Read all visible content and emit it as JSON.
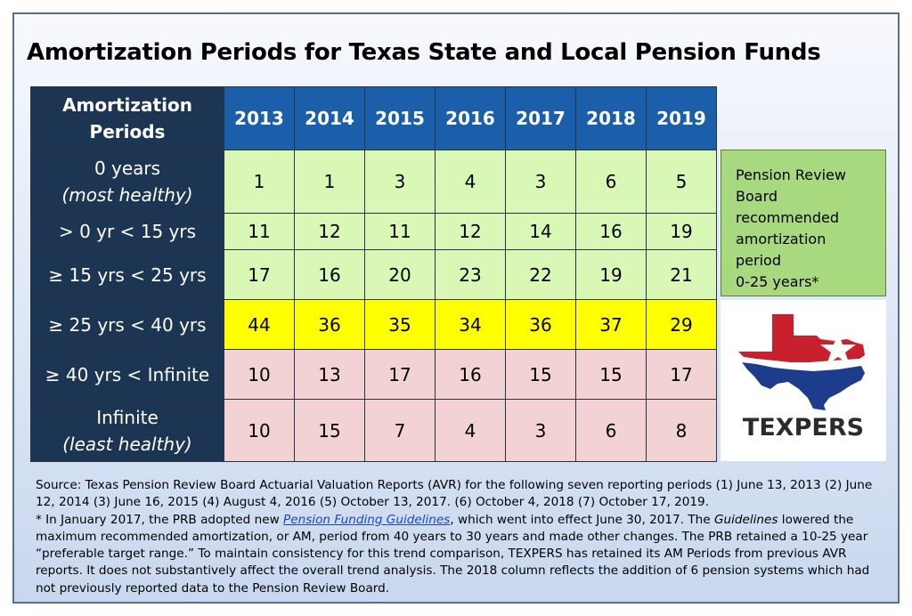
{
  "title": "Amortization Periods for Texas State and Local Pension Funds",
  "chart_data": {
    "type": "table",
    "title": "Amortization Periods for Texas State and Local Pension Funds",
    "header_label_line1": "Amortization",
    "header_label_line2": "Periods",
    "years": [
      "2013",
      "2014",
      "2015",
      "2016",
      "2017",
      "2018",
      "2019"
    ],
    "rows": [
      {
        "label": "0 years",
        "sublabel": "(most healthy)",
        "values": [
          "1",
          "1",
          "3",
          "4",
          "3",
          "6",
          "5"
        ],
        "color": "#d9f8b6"
      },
      {
        "label": "> 0 yr < 15 yrs",
        "sublabel": "",
        "values": [
          "11",
          "12",
          "11",
          "12",
          "14",
          "16",
          "19"
        ],
        "color": "#d9f8b6"
      },
      {
        "label": "≥ 15 yrs < 25 yrs",
        "sublabel": "",
        "values": [
          "17",
          "16",
          "20",
          "23",
          "22",
          "19",
          "21"
        ],
        "color": "#d9f8b6"
      },
      {
        "label": "≥ 25 yrs < 40 yrs",
        "sublabel": "",
        "values": [
          "44",
          "36",
          "35",
          "34",
          "36",
          "37",
          "29"
        ],
        "color": "#ffff00"
      },
      {
        "label": "≥ 40 yrs < Infinite",
        "sublabel": "",
        "values": [
          "10",
          "13",
          "17",
          "16",
          "15",
          "15",
          "17"
        ],
        "color": "#f2d2d2"
      },
      {
        "label": "Infinite",
        "sublabel": "(least healthy)",
        "values": [
          "10",
          "15",
          "7",
          "4",
          "3",
          "6",
          "8"
        ],
        "color": "#f2d2d2"
      }
    ]
  },
  "note": {
    "lines": [
      "Pension Review",
      "Board",
      "recommended",
      "amortization",
      "period",
      "0-25 years*"
    ]
  },
  "logo": {
    "text": "TEXPERS",
    "colors": {
      "red": "#c8202d",
      "blue": "#1d3c8c",
      "star": "#ffffff"
    }
  },
  "source": {
    "line1": "Source: Texas Pension Review Board Actuarial Valuation Reports (AVR) for the following seven reporting periods (1) June 13, 2013 (2) June 12, 2014 (3) June 16, 2015 (4) August 4, 2016 (5) October 13, 2017. (6) October 4, 2018 (7) October 17, 2019.",
    "note_pre": "* In January 2017, the PRB adopted new ",
    "note_link": "Pension Funding Guidelines",
    "note_mid": ", which went into effect June 30, 2017. The ",
    "note_em": "Guidelines",
    "note_post": " lowered the maximum recommended amortization, or AM, period from 40 years to 30 years and made other changes. The PRB retained a 10-25 year “preferable target range.” To maintain consistency for this trend comparison, TEXPERS has retained its AM Periods from previous AVR reports. It does not substantively affect the overall trend analysis. The 2018 column reflects the addition of 6 pension systems which had not previously reported data to the Pension Review Board."
  }
}
